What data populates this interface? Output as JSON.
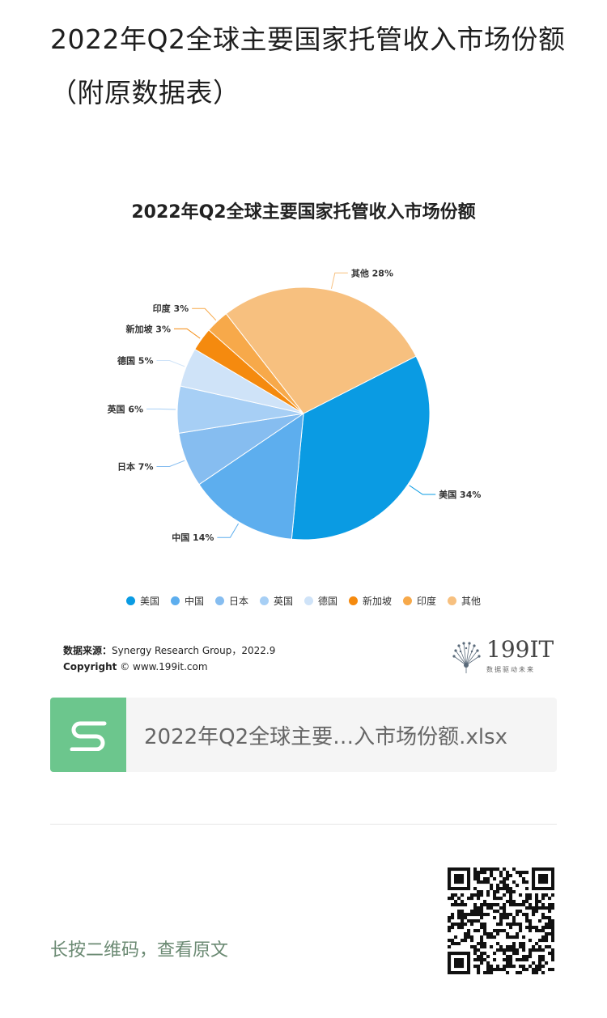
{
  "article": {
    "title": "2022年Q2全球主要国家托管收入市场份额（附原数据表）"
  },
  "chart_data": {
    "type": "pie",
    "title": "2022年Q2全球主要国家托管收入市场份额",
    "categories": [
      "美国",
      "中国",
      "日本",
      "英国",
      "德国",
      "新加坡",
      "印度",
      "其他"
    ],
    "values": [
      34,
      14,
      7,
      6,
      5,
      3,
      3,
      28
    ],
    "labels": [
      "美国 34%",
      "中国 14%",
      "日本 7%",
      "英国 6%",
      "德国 5%",
      "新加坡 3%",
      "印度 3%",
      "其他 28%"
    ],
    "unit": "%",
    "colors": [
      "#0a9be3",
      "#5daeee",
      "#86bdf0",
      "#a7cff5",
      "#cfe3f8",
      "#f58a0e",
      "#f7a94a",
      "#f7c07f"
    ],
    "legend_position": "bottom",
    "start_angle_deg": -27
  },
  "source": {
    "label": "数据来源：",
    "text": "Synergy Research Group，2022.9",
    "copyright_label": "Copyright",
    "copyright_text": "© www.199it.com"
  },
  "brand": {
    "name": "199IT",
    "tagline": "数据驱动未来"
  },
  "attachment": {
    "filename": "2022年Q2全球主要…入市场份额.xlsx",
    "icon": "spreadsheet-icon"
  },
  "footer": {
    "qr_hint": "长按二维码，查看原文"
  }
}
